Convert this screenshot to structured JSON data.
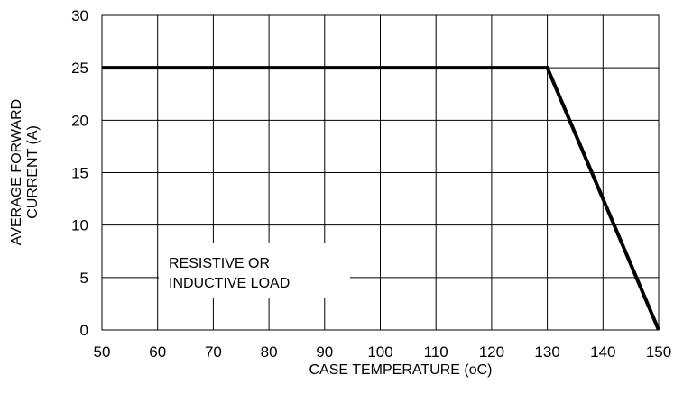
{
  "chart_data": {
    "type": "line",
    "title": "",
    "xlabel": "CASE TEMPERATURE (oC)",
    "ylabel_lines": [
      "AVERAGE FORWARD",
      "CURRENT (A)"
    ],
    "xlim": [
      50,
      150
    ],
    "ylim": [
      0,
      30
    ],
    "xticks": [
      50,
      60,
      70,
      80,
      90,
      100,
      110,
      120,
      130,
      140,
      150
    ],
    "yticks": [
      0,
      5,
      10,
      15,
      20,
      25,
      30
    ],
    "grid": true,
    "series": [
      {
        "x": [
          50,
          130,
          150
        ],
        "y": [
          25,
          25,
          0
        ],
        "color": "#000000"
      }
    ],
    "annotation_lines": [
      "RESISTIVE OR",
      "INDUCTIVE LOAD"
    ]
  }
}
